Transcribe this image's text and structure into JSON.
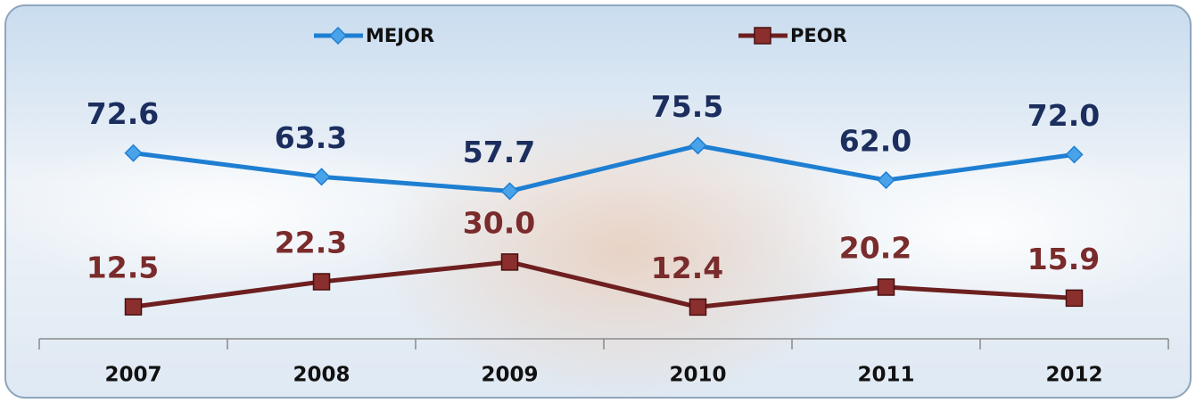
{
  "chart_data": {
    "type": "line",
    "categories": [
      "2007",
      "2008",
      "2009",
      "2010",
      "2011",
      "2012"
    ],
    "series": [
      {
        "name": "MEJOR",
        "color": "#1e7fd2",
        "label_color": "#1b2e5e",
        "marker": "diamond",
        "values": [
          72.6,
          63.3,
          57.7,
          75.5,
          62.0,
          72.0
        ],
        "value_labels": [
          "72.6",
          "63.3",
          "57.7",
          "75.5",
          "62.0",
          "72.0"
        ]
      },
      {
        "name": "PEOR",
        "color": "#6e1f1f",
        "label_color": "#7a2b2b",
        "marker": "square",
        "values": [
          12.5,
          22.3,
          30.0,
          12.4,
          20.2,
          15.9
        ],
        "value_labels": [
          "12.5",
          "22.3",
          "30.0",
          "12.4",
          "20.2",
          "15.9"
        ]
      }
    ],
    "ylim": [
      0,
      100
    ],
    "grid": false
  }
}
